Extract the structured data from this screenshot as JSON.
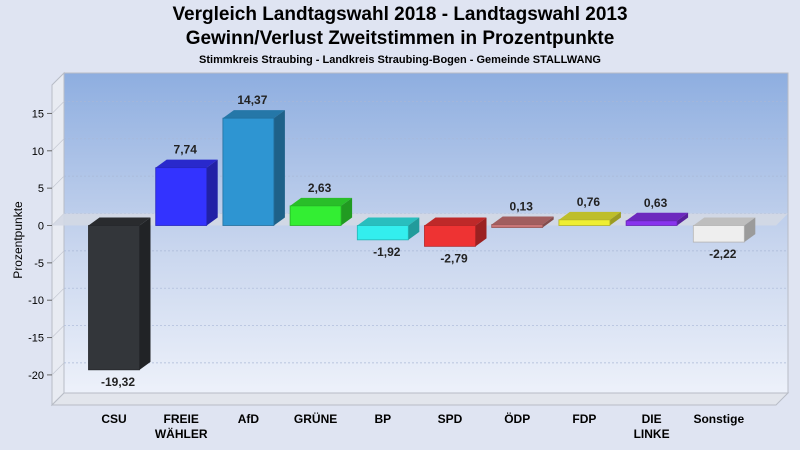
{
  "chart_data": {
    "type": "bar",
    "title": "Vergleich Landtagswahl 2018 - Landtagswahl 2013",
    "subtitle": "Gewinn/Verlust Zweitstimmen in Prozentpunkte",
    "subsubtitle": "Stimmkreis Straubing - Landkreis Straubing-Bogen - Gemeinde STALLWANG",
    "ylabel": "Prozentpunkte",
    "xlabel": "",
    "ylim": [
      -24.5,
      20
    ],
    "yticks": [
      -20,
      -15,
      -10,
      -5,
      0,
      5,
      10,
      15
    ],
    "grid": true,
    "categories": [
      "CSU",
      "FREIE WÄHLER",
      "AfD",
      "GRÜNE",
      "BP",
      "SPD",
      "ÖDP",
      "FDP",
      "DIE LINKE",
      "Sonstige"
    ],
    "category_lines": [
      [
        "CSU"
      ],
      [
        "FREIE",
        "WÄHLER"
      ],
      [
        "AfD"
      ],
      [
        "GRÜNE"
      ],
      [
        "BP"
      ],
      [
        "SPD"
      ],
      [
        "ÖDP"
      ],
      [
        "FDP"
      ],
      [
        "DIE",
        "LINKE"
      ],
      [
        "Sonstige"
      ]
    ],
    "values": [
      -19.32,
      7.74,
      14.37,
      2.63,
      -1.92,
      -2.79,
      0.13,
      0.76,
      0.63,
      -2.22
    ],
    "labels": [
      "-19,32",
      "7,74",
      "14,37",
      "2,63",
      "-1,92",
      "-2,79",
      "0,13",
      "0,76",
      "0,63",
      "-2,22"
    ],
    "colors": [
      "#33363a",
      "#3333ff",
      "#2e95d2",
      "#33ee33",
      "#33eeee",
      "#ee3333",
      "#c97677",
      "#eeee33",
      "#8833ee",
      "#eeeeee"
    ]
  }
}
